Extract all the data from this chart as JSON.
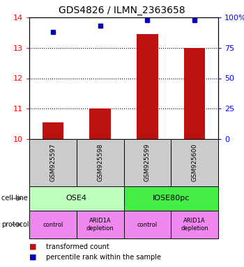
{
  "title": "GDS4826 / ILMN_2363658",
  "samples": [
    "GSM925597",
    "GSM925598",
    "GSM925599",
    "GSM925600"
  ],
  "bar_values": [
    10.55,
    11.0,
    13.45,
    13.0
  ],
  "dot_values": [
    88,
    93,
    98,
    98
  ],
  "ylim_left": [
    10,
    14
  ],
  "ylim_right": [
    0,
    100
  ],
  "yticks_left": [
    10,
    11,
    12,
    13,
    14
  ],
  "yticks_right": [
    0,
    25,
    50,
    75,
    100
  ],
  "ytick_right_labels": [
    "0",
    "25",
    "50",
    "75",
    "100%"
  ],
  "bar_color": "#bb1111",
  "dot_color": "#0000bb",
  "cell_lines": [
    "OSE4",
    "IOSE80pc"
  ],
  "cell_line_spans": [
    [
      0,
      2
    ],
    [
      2,
      4
    ]
  ],
  "cell_line_colors": [
    "#bbffbb",
    "#44ee44"
  ],
  "protocols": [
    "control",
    "ARID1A\ndepletion",
    "control",
    "ARID1A\ndepletion"
  ],
  "protocol_color": "#ee88ee",
  "sample_box_color": "#cccccc",
  "background_color": "#ffffff",
  "legend_items": [
    {
      "color": "#bb1111",
      "label": "transformed count"
    },
    {
      "color": "#0000bb",
      "label": "percentile rank within the sample"
    }
  ]
}
